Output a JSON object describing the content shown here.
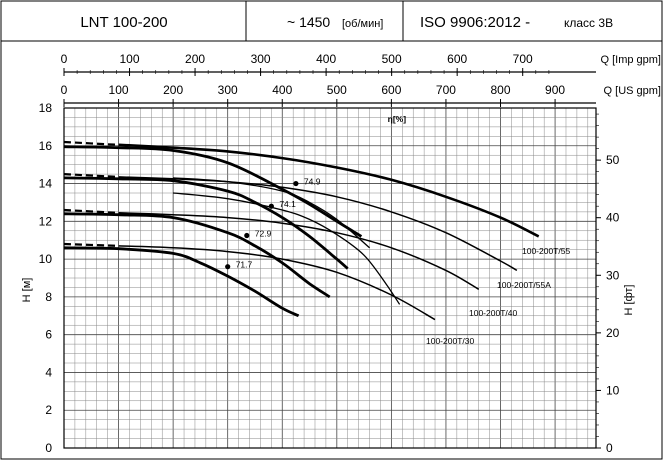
{
  "header": {
    "model": "LNT 100-200",
    "speed_value": "~ 1450",
    "speed_unit": "[об/мин]",
    "standard": "ISO 9906:2012 -",
    "class_label": "класс 3В"
  },
  "chart_data": {
    "type": "line",
    "title": "",
    "x_axes": {
      "imp_gpm": {
        "label": "Q [Imp gpm]",
        "range": [
          0,
          750
        ],
        "ticks": [
          0,
          100,
          200,
          300,
          400,
          500,
          600,
          700
        ]
      },
      "us_gpm": {
        "label": "Q [US gpm]",
        "range": [
          0,
          900
        ],
        "ticks": [
          0,
          100,
          200,
          300,
          400,
          500,
          600,
          700,
          800,
          900
        ]
      }
    },
    "y_axes": {
      "left": {
        "label": "H [м]",
        "range": [
          0,
          18
        ],
        "ticks": [
          0,
          2,
          4,
          6,
          8,
          10,
          12,
          14,
          16,
          18
        ]
      },
      "right": {
        "label": "H [фт]",
        "range": [
          0,
          59
        ],
        "ticks": [
          0,
          10,
          20,
          30,
          40,
          50
        ]
      }
    },
    "grid": true,
    "efficiency_label": "η[%]",
    "series": [
      {
        "name": "100-200T/55",
        "x": [
          0,
          100,
          200,
          300,
          400,
          500,
          600,
          700,
          800,
          870
        ],
        "y": [
          16.2,
          16.05,
          15.9,
          15.7,
          15.35,
          14.85,
          14.2,
          13.3,
          12.2,
          11.2
        ]
      },
      {
        "name": "100-200T/55A",
        "x": [
          0,
          100,
          200,
          300,
          400,
          500,
          600,
          700,
          800,
          830
        ],
        "y": [
          14.5,
          14.35,
          14.25,
          14.1,
          13.8,
          13.3,
          12.5,
          11.4,
          9.9,
          9.4
        ]
      },
      {
        "name": "100-200T/40",
        "x": [
          0,
          100,
          200,
          300,
          400,
          500,
          600,
          700,
          760
        ],
        "y": [
          12.6,
          12.45,
          12.35,
          12.2,
          11.9,
          11.4,
          10.6,
          9.4,
          8.4
        ]
      },
      {
        "name": "100-200T/30",
        "x": [
          0,
          100,
          200,
          300,
          400,
          500,
          600,
          680
        ],
        "y": [
          10.8,
          10.7,
          10.6,
          10.4,
          10.0,
          9.3,
          8.1,
          6.8
        ]
      }
    ],
    "efficiency_curves": [
      {
        "label": "74.9",
        "x": [
          0,
          100,
          200,
          300,
          400,
          450,
          500,
          545
        ],
        "y": [
          15.95,
          15.9,
          15.75,
          15.1,
          13.7,
          12.9,
          12.0,
          11.2
        ],
        "marker": {
          "x": 425,
          "y": 14.0
        }
      },
      {
        "label": "74.1",
        "x": [
          0,
          100,
          200,
          300,
          350,
          400,
          450,
          500,
          520
        ],
        "y": [
          14.3,
          14.25,
          14.15,
          13.6,
          13.0,
          12.2,
          11.2,
          10.0,
          9.5
        ],
        "marker": {
          "x": 380,
          "y": 12.8
        }
      },
      {
        "label": "72.9",
        "x": [
          0,
          100,
          200,
          300,
          350,
          400,
          450,
          487
        ],
        "y": [
          12.4,
          12.35,
          12.2,
          11.4,
          10.7,
          9.8,
          8.7,
          8.0
        ],
        "marker": {
          "x": 335,
          "y": 11.25
        }
      },
      {
        "label": "71.7",
        "x": [
          0,
          100,
          200,
          250,
          300,
          350,
          400,
          430
        ],
        "y": [
          10.6,
          10.55,
          10.3,
          9.8,
          9.1,
          8.3,
          7.4,
          7.0
        ],
        "marker": {
          "x": 300,
          "y": 9.6
        }
      }
    ],
    "curve_curves": [
      {
        "x": [
          200,
          300,
          400,
          450,
          500,
          550,
          590,
          615
        ],
        "y": [
          13.5,
          13.2,
          12.6,
          12.1,
          11.3,
          10.2,
          8.7,
          7.6
        ]
      },
      {
        "x": [
          200,
          300,
          400,
          450,
          500,
          560
        ],
        "y": [
          14.3,
          14.1,
          13.6,
          13.0,
          12.1,
          10.6
        ]
      }
    ]
  }
}
